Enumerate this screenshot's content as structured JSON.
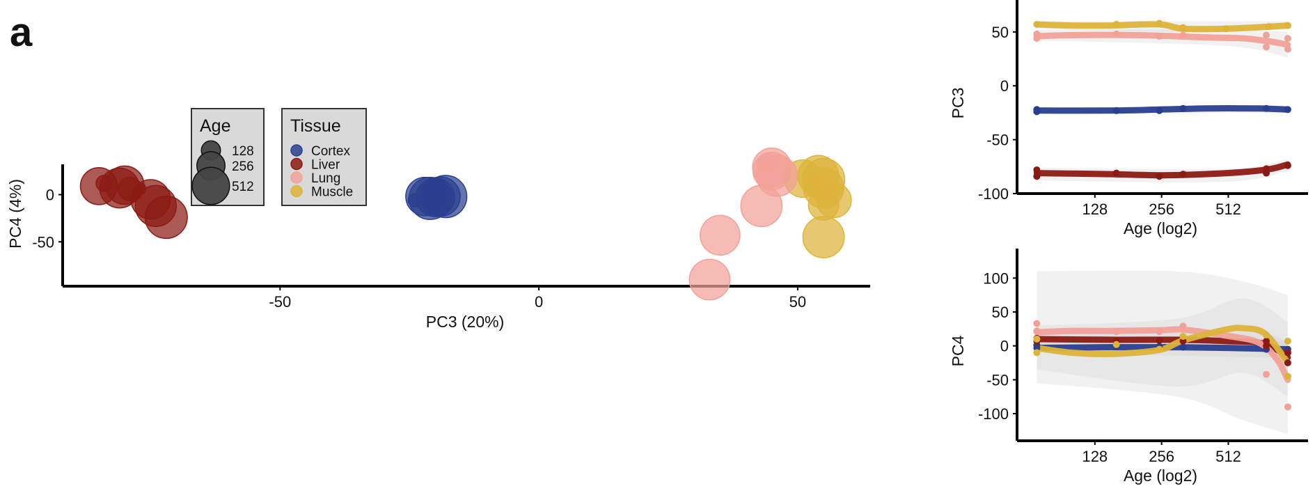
{
  "panel_label": "a",
  "chart_data": [
    {
      "type": "scatter",
      "xlabel": "PC3 (20%)",
      "ylabel": "PC4 (4%)",
      "xlim": [
        -92,
        64
      ],
      "ylim": [
        -97,
        38
      ],
      "xticks": [
        -50,
        0,
        50
      ],
      "yticks": [
        0,
        -50
      ],
      "xtick_labels": [
        "-50",
        "0",
        "50"
      ],
      "ytick_labels": [
        "0",
        "-50"
      ],
      "grid": false,
      "legends": {
        "age": {
          "title": "Age",
          "entries": [
            {
              "label": "128",
              "age": 128
            },
            {
              "label": "256",
              "age": 256
            },
            {
              "label": "512",
              "age": 512
            }
          ]
        },
        "tissue": {
          "title": "Tissue",
          "entries": [
            "Cortex",
            "Liver",
            "Lung",
            "Muscle"
          ]
        }
      },
      "colors": {
        "Cortex": "#2a3e8f",
        "Liver": "#8b1a14",
        "Lung": "#f2a199",
        "Muscle": "#ddb33a"
      },
      "points": [
        {
          "tissue": "Liver",
          "x": -85,
          "y": 9,
          "age": 500
        },
        {
          "tissue": "Liver",
          "x": -84,
          "y": 12,
          "age": 100
        },
        {
          "tissue": "Liver",
          "x": -81,
          "y": 7,
          "age": 620
        },
        {
          "tissue": "Liver",
          "x": -80,
          "y": 10,
          "age": 560
        },
        {
          "tissue": "Liver",
          "x": -79,
          "y": 6,
          "age": 180
        },
        {
          "tissue": "Liver",
          "x": -77,
          "y": 6,
          "age": 70
        },
        {
          "tissue": "Liver",
          "x": -75,
          "y": -5,
          "age": 600
        },
        {
          "tissue": "Liver",
          "x": -74,
          "y": -12,
          "age": 680
        },
        {
          "tissue": "Liver",
          "x": -72,
          "y": -24,
          "age": 750
        },
        {
          "tissue": "Cortex",
          "x": -24,
          "y": -6,
          "age": 80
        },
        {
          "tissue": "Cortex",
          "x": -22,
          "y": -2,
          "age": 560
        },
        {
          "tissue": "Cortex",
          "x": -21,
          "y": -4,
          "age": 750
        },
        {
          "tissue": "Cortex",
          "x": -20,
          "y": -3,
          "age": 560
        },
        {
          "tissue": "Cortex",
          "x": -19,
          "y": -2,
          "age": 600
        },
        {
          "tissue": "Cortex",
          "x": -18,
          "y": -2,
          "age": 750
        },
        {
          "tissue": "Lung",
          "x": 44,
          "y": 34,
          "age": 120
        },
        {
          "tissue": "Lung",
          "x": 45,
          "y": 29,
          "age": 560
        },
        {
          "tissue": "Lung",
          "x": 45,
          "y": 25,
          "age": 520
        },
        {
          "tissue": "Lung",
          "x": 46,
          "y": 20,
          "age": 680
        },
        {
          "tissue": "Lung",
          "x": 43,
          "y": -12,
          "age": 700
        },
        {
          "tissue": "Lung",
          "x": 35,
          "y": -43,
          "age": 620
        },
        {
          "tissue": "Lung",
          "x": 33,
          "y": -90,
          "age": 660
        },
        {
          "tissue": "Muscle",
          "x": 51,
          "y": 17,
          "age": 520
        },
        {
          "tissue": "Muscle",
          "x": 54,
          "y": 20,
          "age": 660
        },
        {
          "tissue": "Muscle",
          "x": 55,
          "y": 16,
          "age": 750
        },
        {
          "tissue": "Muscle",
          "x": 55,
          "y": 7,
          "age": 640
        },
        {
          "tissue": "Muscle",
          "x": 57,
          "y": -6,
          "age": 420
        },
        {
          "tissue": "Muscle",
          "x": 55,
          "y": -11,
          "age": 300
        },
        {
          "tissue": "Muscle",
          "x": 55,
          "y": -45,
          "age": 700
        }
      ]
    },
    {
      "type": "line",
      "ylabel": "PC3",
      "xlabel": "Age (log2)",
      "x_scale": "log2",
      "xlim": [
        64,
        1000
      ],
      "ylim": [
        -100,
        68
      ],
      "xticks": [
        128,
        256,
        512
      ],
      "yticks": [
        50,
        0,
        -50,
        -100
      ],
      "grid": false,
      "series": [
        {
          "name": "Muscle",
          "fit": [
            [
              70,
              57
            ],
            [
              100,
              56
            ],
            [
              150,
              56
            ],
            [
              250,
              57
            ],
            [
              320,
              53
            ],
            [
              500,
              53
            ],
            [
              800,
              55
            ],
            [
              950,
              56
            ]
          ],
          "band": [
            [
              70,
              60,
              53
            ],
            [
              300,
              60,
              50
            ],
            [
              950,
              60,
              52
            ]
          ],
          "points": [
            [
              70,
              57
            ],
            [
              160,
              57
            ],
            [
              250,
              58
            ],
            [
              320,
              54
            ],
            [
              500,
              53
            ],
            [
              780,
              55
            ],
            [
              950,
              56
            ]
          ]
        },
        {
          "name": "Lung",
          "fit": [
            [
              70,
              46
            ],
            [
              100,
              47
            ],
            [
              200,
              47
            ],
            [
              400,
              45
            ],
            [
              600,
              44
            ],
            [
              800,
              41
            ],
            [
              950,
              38
            ]
          ],
          "band": [
            [
              70,
              52,
              42
            ],
            [
              500,
              52,
              37
            ],
            [
              950,
              50,
              26
            ]
          ],
          "points": [
            [
              70,
              48
            ],
            [
              70,
              44
            ],
            [
              160,
              48
            ],
            [
              250,
              46
            ],
            [
              320,
              47
            ],
            [
              760,
              47
            ],
            [
              760,
              36
            ],
            [
              950,
              44
            ],
            [
              950,
              34
            ]
          ]
        },
        {
          "name": "Cortex",
          "fit": [
            [
              70,
              -23
            ],
            [
              150,
              -23
            ],
            [
              250,
              -22
            ],
            [
              400,
              -21
            ],
            [
              700,
              -21
            ],
            [
              950,
              -22
            ]
          ],
          "band": [
            [
              70,
              -20,
              -26
            ],
            [
              950,
              -19,
              -25
            ]
          ],
          "points": [
            [
              70,
              -24
            ],
            [
              70,
              -22
            ],
            [
              160,
              -23
            ],
            [
              250,
              -23
            ],
            [
              320,
              -21
            ],
            [
              760,
              -21
            ],
            [
              950,
              -22
            ]
          ]
        },
        {
          "name": "Liver",
          "fit": [
            [
              70,
              -81
            ],
            [
              150,
              -82
            ],
            [
              250,
              -83
            ],
            [
              400,
              -82
            ],
            [
              600,
              -80
            ],
            [
              800,
              -77
            ],
            [
              950,
              -73
            ]
          ],
          "band": [
            [
              70,
              -76,
              -88
            ],
            [
              500,
              -77,
              -89
            ],
            [
              950,
              -68,
              -79
            ]
          ],
          "points": [
            [
              70,
              -78
            ],
            [
              70,
              -84
            ],
            [
              160,
              -81
            ],
            [
              250,
              -84
            ],
            [
              320,
              -82
            ],
            [
              760,
              -77
            ],
            [
              760,
              -81
            ],
            [
              950,
              -74
            ]
          ]
        }
      ]
    },
    {
      "type": "line",
      "ylabel": "PC4",
      "xlabel": "Age (log2)",
      "x_scale": "log2",
      "xlim": [
        64,
        1000
      ],
      "ylim": [
        -140,
        125
      ],
      "xticks": [
        128,
        256,
        512
      ],
      "yticks": [
        100,
        50,
        0,
        -50,
        -100
      ],
      "grid": false,
      "series": [
        {
          "name": "Cortex",
          "fit": [
            [
              70,
              -3
            ],
            [
              150,
              -2
            ],
            [
              300,
              -2
            ],
            [
              500,
              -3
            ],
            [
              700,
              -4
            ],
            [
              950,
              -5
            ]
          ],
          "band": [
            [
              70,
              5,
              -10
            ],
            [
              950,
              8,
              -18
            ]
          ],
          "points": [
            [
              70,
              -3
            ],
            [
              70,
              1
            ],
            [
              160,
              -1
            ],
            [
              250,
              -1
            ],
            [
              320,
              -2
            ],
            [
              760,
              -5
            ],
            [
              950,
              -5
            ]
          ]
        },
        {
          "name": "Liver",
          "fit": [
            [
              70,
              10
            ],
            [
              150,
              9
            ],
            [
              300,
              9
            ],
            [
              500,
              7
            ],
            [
              750,
              3
            ],
            [
              950,
              -17
            ]
          ],
          "band": [
            [
              70,
              20,
              0
            ],
            [
              600,
              20,
              -5
            ],
            [
              950,
              5,
              -40
            ]
          ],
          "points": [
            [
              70,
              11
            ],
            [
              70,
              7
            ],
            [
              160,
              7
            ],
            [
              250,
              8
            ],
            [
              320,
              7
            ],
            [
              760,
              7
            ],
            [
              760,
              0
            ],
            [
              950,
              -10
            ],
            [
              950,
              -25
            ]
          ]
        },
        {
          "name": "Lung",
          "fit": [
            [
              70,
              20
            ],
            [
              100,
              22
            ],
            [
              150,
              22
            ],
            [
              250,
              23
            ],
            [
              320,
              24
            ],
            [
              500,
              15
            ],
            [
              700,
              5
            ],
            [
              850,
              -20
            ],
            [
              950,
              -50
            ]
          ],
          "band": [
            [
              70,
              110,
              -55
            ],
            [
              300,
              110,
              -75
            ],
            [
              600,
              95,
              -110
            ],
            [
              950,
              75,
              -130
            ]
          ],
          "points": [
            [
              70,
              33
            ],
            [
              70,
              22
            ],
            [
              160,
              21
            ],
            [
              250,
              21
            ],
            [
              320,
              29
            ],
            [
              760,
              -42
            ],
            [
              950,
              -90
            ]
          ]
        },
        {
          "name": "Muscle",
          "fit": [
            [
              70,
              -3
            ],
            [
              100,
              -10
            ],
            [
              150,
              -12
            ],
            [
              250,
              -6
            ],
            [
              320,
              8
            ],
            [
              500,
              24
            ],
            [
              600,
              26
            ],
            [
              750,
              18
            ],
            [
              950,
              -25
            ]
          ],
          "band": [
            [
              70,
              30,
              -35
            ],
            [
              300,
              40,
              -60
            ],
            [
              600,
              70,
              -40
            ],
            [
              950,
              35,
              -75
            ]
          ],
          "points": [
            [
              70,
              10
            ],
            [
              70,
              -10
            ],
            [
              160,
              2
            ],
            [
              250,
              -5
            ],
            [
              320,
              14
            ],
            [
              760,
              16
            ],
            [
              950,
              -45
            ],
            [
              950,
              7
            ]
          ]
        }
      ]
    }
  ]
}
